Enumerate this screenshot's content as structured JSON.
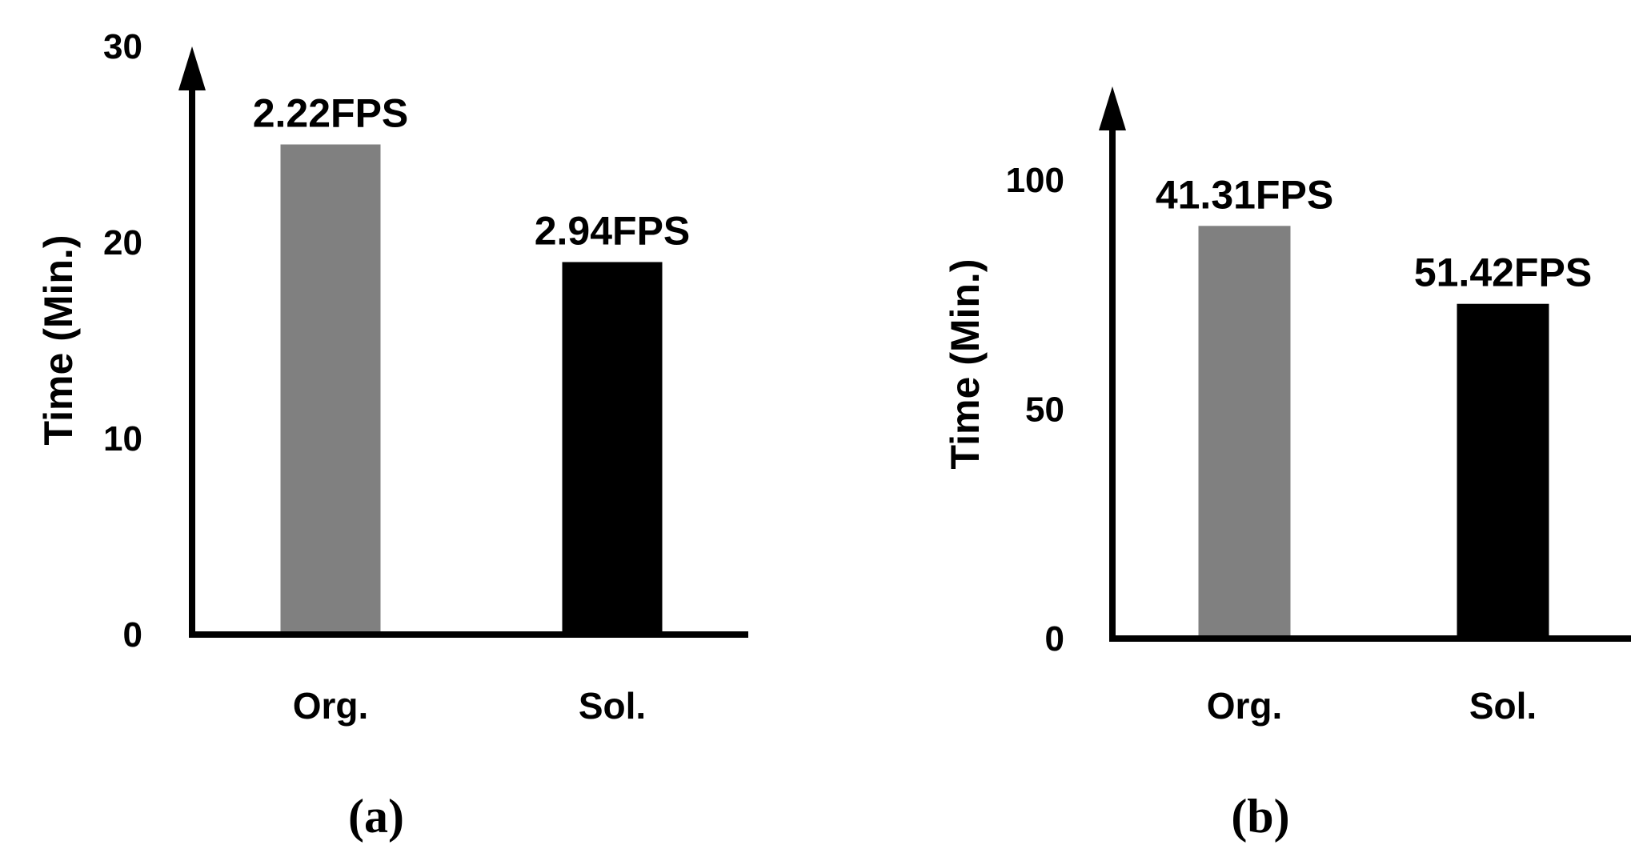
{
  "chart_data": [
    {
      "type": "bar",
      "panel_label": "(a)",
      "ylabel": "Time (Min.)",
      "yticks": [
        0,
        10,
        20,
        30
      ],
      "ylim": [
        0,
        30
      ],
      "categories": [
        "Org.",
        "Sol."
      ],
      "values": [
        25,
        19
      ],
      "data_labels": [
        "2.22FPS",
        "2.94FPS"
      ],
      "colors": [
        "#808080",
        "#000000"
      ],
      "grid": false
    },
    {
      "type": "bar",
      "panel_label": "(b)",
      "ylabel": "Time (Min.)",
      "yticks": [
        0,
        50,
        100
      ],
      "ylim": [
        0,
        100
      ],
      "categories": [
        "Org.",
        "Sol."
      ],
      "values": [
        90,
        73
      ],
      "data_labels": [
        "41.31FPS",
        "51.42FPS"
      ],
      "colors": [
        "#808080",
        "#000000"
      ],
      "grid": false
    }
  ]
}
